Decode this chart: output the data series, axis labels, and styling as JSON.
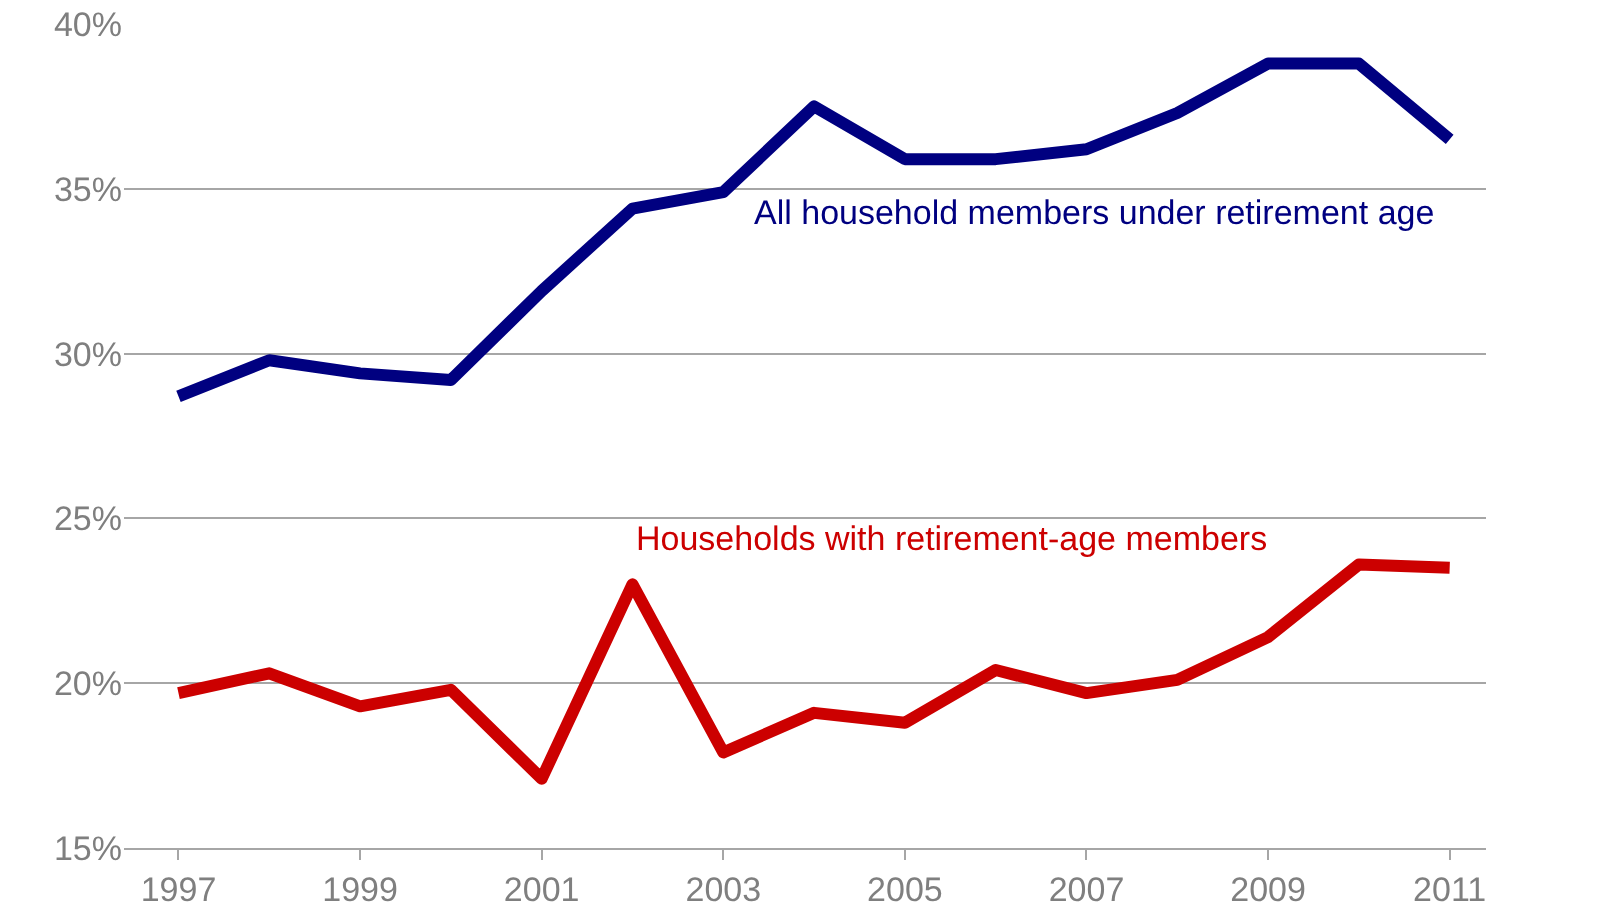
{
  "chart_data": {
    "type": "line",
    "x": [
      1997,
      1998,
      1999,
      2000,
      2001,
      2002,
      2003,
      2004,
      2005,
      2006,
      2007,
      2008,
      2009,
      2010,
      2011
    ],
    "series": [
      {
        "name": "All household members under retirement age",
        "color": "#000080",
        "values": [
          28.7,
          29.8,
          29.4,
          29.2,
          31.9,
          34.4,
          34.9,
          37.5,
          35.9,
          35.9,
          36.2,
          37.3,
          38.8,
          38.8,
          36.5
        ]
      },
      {
        "name": "Households with retirement-age members",
        "color": "#cc0000",
        "values": [
          19.7,
          20.3,
          19.3,
          19.8,
          17.1,
          23.0,
          17.9,
          19.1,
          18.8,
          20.4,
          19.7,
          20.1,
          21.4,
          23.6,
          23.5
        ]
      }
    ],
    "xlim": [
      1996.4,
      2011.4
    ],
    "xticks": [
      1997,
      1999,
      2001,
      2003,
      2005,
      2007,
      2009,
      2011
    ],
    "ylim": [
      15,
      40
    ],
    "yticks": [
      {
        "value": 15,
        "label": "15%"
      },
      {
        "value": 20,
        "label": "20%"
      },
      {
        "value": 25,
        "label": "25%"
      },
      {
        "value": 30,
        "label": "30%"
      },
      {
        "value": 35,
        "label": "35%"
      },
      {
        "value": 40,
        "label": "40%"
      }
    ],
    "grid": "y",
    "legend": false,
    "marker": "none",
    "line_style": "solid"
  }
}
